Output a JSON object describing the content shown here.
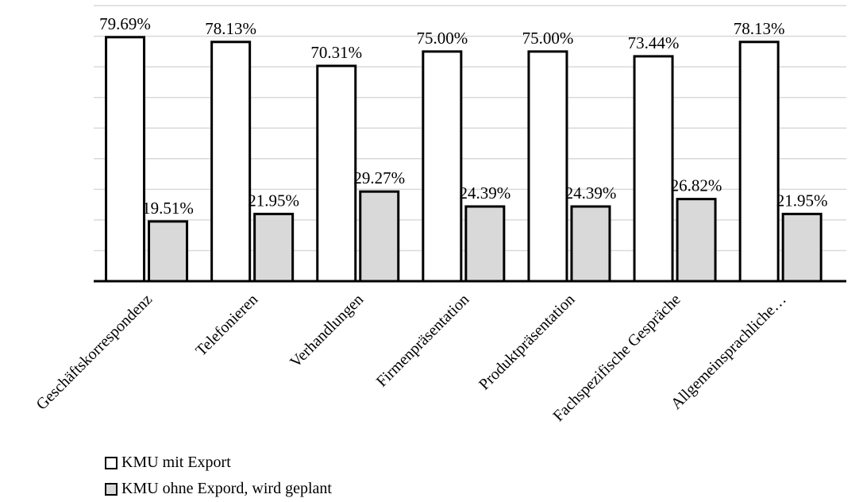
{
  "chart_data": {
    "type": "bar",
    "categories": [
      "Geschäftskorrespondenz",
      "Telefonieren",
      "Verhandlungen",
      "Firmenpräsentation",
      "Produktpräsentation",
      "Fachspezifische Gespräche",
      "Allgemeinsprachliche…"
    ],
    "series": [
      {
        "name": "KMU mit Export",
        "values": [
          79.69,
          78.13,
          70.31,
          75.0,
          75.0,
          73.44,
          78.13
        ],
        "labels": [
          "79.69%",
          "78.13%",
          "70.31%",
          "75.00%",
          "75.00%",
          "73.44%",
          "78.13%"
        ],
        "color": "#ffffff"
      },
      {
        "name": "KMU ohne Expord, wird geplant",
        "values": [
          19.51,
          21.95,
          29.27,
          24.39,
          24.39,
          26.82,
          21.95
        ],
        "labels": [
          "19.51%",
          "21.95%",
          "29.27%",
          "24.39%",
          "24.39%",
          "26.82%",
          "21.95%"
        ],
        "color": "#d9d9d9"
      }
    ],
    "ylim": [
      0,
      90
    ],
    "grid": true,
    "legend_position": "bottom-left",
    "title": "",
    "xlabel": "",
    "ylabel": ""
  },
  "legend": {
    "items": [
      "KMU mit Export",
      "KMU ohne Expord, wird geplant"
    ]
  }
}
